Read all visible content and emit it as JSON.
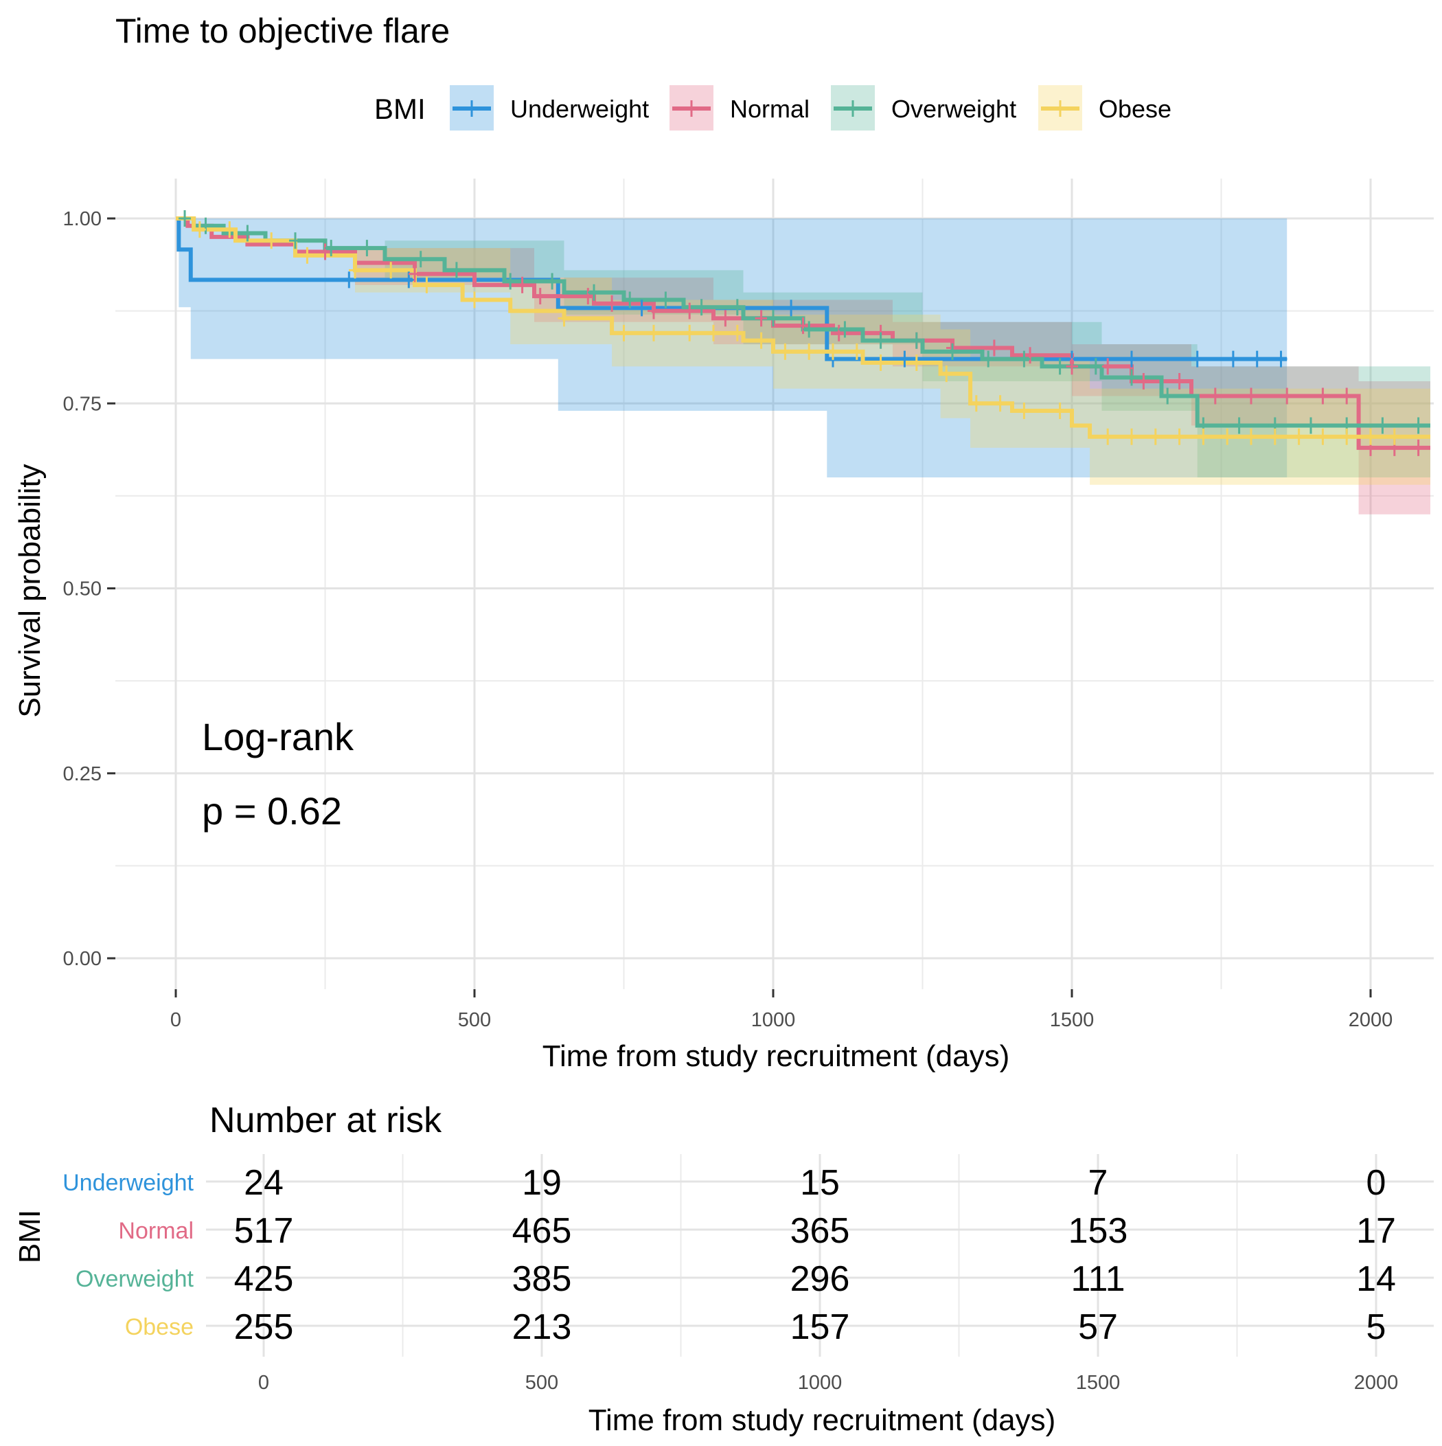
{
  "chart_data": [
    {
      "type": "line",
      "subtype": "kaplan-meier",
      "title": "Time to objective flare",
      "xlabel": "Time from study recruitment (days)",
      "ylabel": "Survival probability",
      "xlim": [
        0,
        2100
      ],
      "ylim": [
        0,
        1
      ],
      "x_ticks": [
        0,
        500,
        1000,
        1500,
        2000
      ],
      "x_tick_labels": [
        "0",
        "500",
        "1000",
        "1500",
        "2000"
      ],
      "y_ticks": [
        0,
        0.25,
        0.5,
        0.75,
        1
      ],
      "y_tick_labels": [
        "0.00",
        "0.25",
        "0.50",
        "0.75",
        "1.00"
      ],
      "grid": true,
      "legend": {
        "title": "BMI",
        "position": "top",
        "entries": [
          "Underweight",
          "Normal",
          "Overweight",
          "Obese"
        ]
      },
      "annotation": {
        "line1": "Log-rank",
        "line2": "p = 0.62"
      },
      "series": [
        {
          "name": "Underweight",
          "color": "#2E93DB",
          "steps": [
            [
              0,
              1.0
            ],
            [
              5,
              0.958
            ],
            [
              25,
              0.917
            ],
            [
              640,
              0.879
            ],
            [
              1090,
              0.81
            ],
            [
              1860,
              0.81
            ]
          ],
          "ci_lower": [
            [
              0,
              1.0
            ],
            [
              5,
              0.88
            ],
            [
              25,
              0.81
            ],
            [
              640,
              0.74
            ],
            [
              1090,
              0.65
            ],
            [
              1860,
              0.65
            ]
          ],
          "ci_upper": [
            [
              0,
              1.0
            ],
            [
              1860,
              1.0
            ]
          ],
          "censored": [
            290,
            390,
            780,
            1030,
            1100,
            1220,
            1500,
            1600,
            1710,
            1770,
            1810,
            1850
          ]
        },
        {
          "name": "Normal",
          "color": "#E16A86",
          "steps": [
            [
              0,
              1.0
            ],
            [
              20,
              0.99
            ],
            [
              60,
              0.975
            ],
            [
              120,
              0.965
            ],
            [
              200,
              0.955
            ],
            [
              300,
              0.94
            ],
            [
              400,
              0.925
            ],
            [
              500,
              0.91
            ],
            [
              600,
              0.895
            ],
            [
              700,
              0.885
            ],
            [
              800,
              0.875
            ],
            [
              900,
              0.865
            ],
            [
              1000,
              0.855
            ],
            [
              1100,
              0.845
            ],
            [
              1200,
              0.835
            ],
            [
              1300,
              0.825
            ],
            [
              1400,
              0.815
            ],
            [
              1500,
              0.8
            ],
            [
              1600,
              0.78
            ],
            [
              1700,
              0.76
            ],
            [
              1980,
              0.69
            ],
            [
              2100,
              0.69
            ]
          ],
          "ci_lower": [
            [
              0,
              1.0
            ],
            [
              300,
              0.91
            ],
            [
              600,
              0.86
            ],
            [
              900,
              0.83
            ],
            [
              1200,
              0.8
            ],
            [
              1500,
              0.76
            ],
            [
              1700,
              0.72
            ],
            [
              1980,
              0.6
            ],
            [
              2100,
              0.6
            ]
          ],
          "ci_upper": [
            [
              0,
              1.0
            ],
            [
              300,
              0.96
            ],
            [
              600,
              0.92
            ],
            [
              900,
              0.89
            ],
            [
              1200,
              0.86
            ],
            [
              1500,
              0.83
            ],
            [
              1700,
              0.8
            ],
            [
              1980,
              0.78
            ],
            [
              2100,
              0.78
            ]
          ],
          "censored": [
            250,
            400,
            580,
            610,
            690,
            730,
            800,
            860,
            920,
            980,
            1050,
            1110,
            1180,
            1240,
            1300,
            1370,
            1430,
            1500,
            1560,
            1620,
            1680,
            1740,
            1800,
            1860,
            1920,
            1960,
            2000,
            2040,
            2080
          ]
        },
        {
          "name": "Overweight",
          "color": "#55B397",
          "steps": [
            [
              0,
              1.0
            ],
            [
              30,
              0.99
            ],
            [
              80,
              0.98
            ],
            [
              150,
              0.97
            ],
            [
              250,
              0.96
            ],
            [
              350,
              0.945
            ],
            [
              450,
              0.93
            ],
            [
              550,
              0.915
            ],
            [
              650,
              0.9
            ],
            [
              750,
              0.89
            ],
            [
              850,
              0.88
            ],
            [
              950,
              0.865
            ],
            [
              1050,
              0.85
            ],
            [
              1150,
              0.835
            ],
            [
              1250,
              0.82
            ],
            [
              1350,
              0.81
            ],
            [
              1450,
              0.8
            ],
            [
              1550,
              0.785
            ],
            [
              1650,
              0.76
            ],
            [
              1710,
              0.72
            ],
            [
              2100,
              0.72
            ]
          ],
          "ci_lower": [
            [
              0,
              1.0
            ],
            [
              350,
              0.92
            ],
            [
              650,
              0.87
            ],
            [
              950,
              0.83
            ],
            [
              1250,
              0.78
            ],
            [
              1550,
              0.74
            ],
            [
              1710,
              0.65
            ],
            [
              2100,
              0.65
            ]
          ],
          "ci_upper": [
            [
              0,
              1.0
            ],
            [
              350,
              0.97
            ],
            [
              650,
              0.93
            ],
            [
              950,
              0.9
            ],
            [
              1250,
              0.86
            ],
            [
              1550,
              0.83
            ],
            [
              1710,
              0.8
            ],
            [
              2100,
              0.8
            ]
          ],
          "censored": [
            15,
            50,
            120,
            200,
            260,
            320,
            410,
            470,
            560,
            630,
            700,
            760,
            820,
            880,
            940,
            1000,
            1060,
            1120,
            1180,
            1240,
            1300,
            1360,
            1420,
            1480,
            1540,
            1600,
            1660,
            1720,
            1780,
            1840,
            1900,
            1960,
            2020,
            2080
          ]
        },
        {
          "name": "Obese",
          "color": "#F4D35E",
          "steps": [
            [
              0,
              1.0
            ],
            [
              30,
              0.985
            ],
            [
              100,
              0.97
            ],
            [
              200,
              0.95
            ],
            [
              300,
              0.93
            ],
            [
              400,
              0.91
            ],
            [
              480,
              0.89
            ],
            [
              560,
              0.875
            ],
            [
              650,
              0.865
            ],
            [
              730,
              0.845
            ],
            [
              950,
              0.835
            ],
            [
              1000,
              0.82
            ],
            [
              1150,
              0.805
            ],
            [
              1280,
              0.79
            ],
            [
              1330,
              0.75
            ],
            [
              1400,
              0.74
            ],
            [
              1500,
              0.72
            ],
            [
              1530,
              0.705
            ],
            [
              2100,
              0.705
            ]
          ],
          "ci_lower": [
            [
              0,
              1.0
            ],
            [
              300,
              0.9
            ],
            [
              560,
              0.83
            ],
            [
              730,
              0.8
            ],
            [
              1000,
              0.77
            ],
            [
              1280,
              0.73
            ],
            [
              1330,
              0.69
            ],
            [
              1530,
              0.64
            ],
            [
              2100,
              0.64
            ]
          ],
          "ci_upper": [
            [
              0,
              1.0
            ],
            [
              300,
              0.96
            ],
            [
              560,
              0.92
            ],
            [
              730,
              0.89
            ],
            [
              1000,
              0.87
            ],
            [
              1280,
              0.85
            ],
            [
              1330,
              0.81
            ],
            [
              1530,
              0.77
            ],
            [
              2100,
              0.77
            ]
          ],
          "censored": [
            40,
            90,
            160,
            220,
            300,
            360,
            420,
            500,
            650,
            750,
            800,
            860,
            900,
            940,
            980,
            1020,
            1060,
            1100,
            1140,
            1180,
            1240,
            1290,
            1340,
            1380,
            1420,
            1480,
            1560,
            1600,
            1640,
            1680,
            1720,
            1760,
            1800,
            1840,
            1880,
            1920,
            1960,
            2000,
            2040
          ]
        }
      ]
    },
    {
      "type": "table",
      "title": "Number at risk",
      "ylabel": "BMI",
      "xlabel": "Time from study recruitment (days)",
      "x_ticks": [
        0,
        500,
        1000,
        1500,
        2000
      ],
      "x_tick_labels": [
        "0",
        "500",
        "1000",
        "1500",
        "2000"
      ],
      "rows": [
        {
          "name": "Underweight",
          "color": "#2E93DB",
          "values": [
            "24",
            "19",
            "15",
            "7",
            "0"
          ]
        },
        {
          "name": "Normal",
          "color": "#E16A86",
          "values": [
            "517",
            "465",
            "365",
            "153",
            "17"
          ]
        },
        {
          "name": "Overweight",
          "color": "#55B397",
          "values": [
            "425",
            "385",
            "296",
            "111",
            "14"
          ]
        },
        {
          "name": "Obese",
          "color": "#F4D35E",
          "values": [
            "255",
            "213",
            "157",
            "57",
            "5"
          ]
        }
      ]
    }
  ]
}
